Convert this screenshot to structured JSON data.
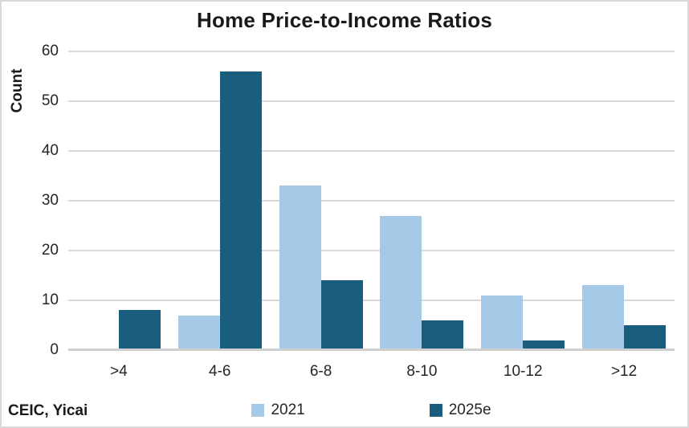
{
  "source_note": "CEIC, Yicai",
  "chart_data": {
    "type": "bar",
    "title": "Home Price-to-Income Ratios",
    "xlabel": "",
    "ylabel": "Count",
    "categories": [
      ">4",
      "4-6",
      "6-8",
      "8-10",
      "10-12",
      ">12"
    ],
    "series": [
      {
        "name": "2021",
        "color": "#a7c9e8",
        "values": [
          0,
          7,
          33,
          27,
          11,
          13
        ]
      },
      {
        "name": "2025e",
        "color": "#1a5e7d",
        "values": [
          8,
          56,
          14,
          6,
          2,
          5
        ]
      }
    ],
    "ylim": [
      0,
      60
    ],
    "yticks": [
      0,
      10,
      20,
      30,
      40,
      50,
      60
    ],
    "grid": "horizontal",
    "gridline_color": "#d9d9d9",
    "legend_position": "bottom",
    "text_color": "#262626"
  }
}
